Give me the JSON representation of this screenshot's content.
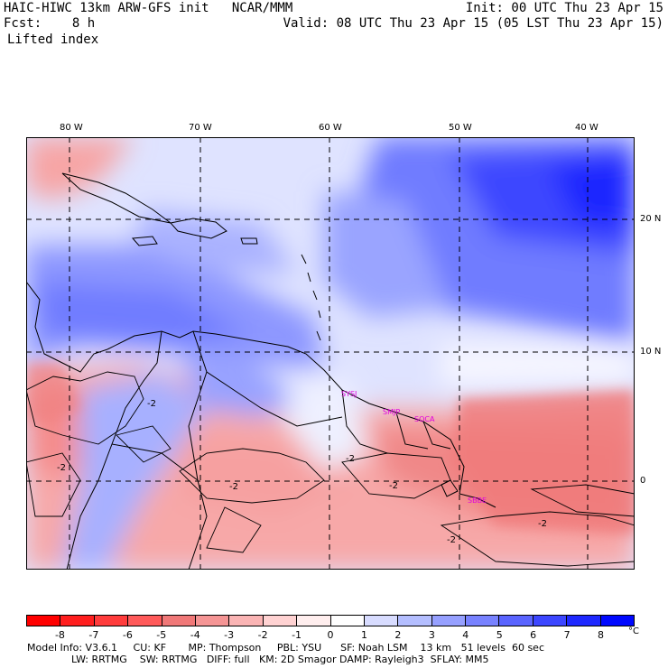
{
  "header": {
    "model_title": "HAIC-HIWC 13km ARW-GFS init   NCAR/MMM",
    "fcst_label": "Fcst:    8 h",
    "field_name": "Lifted index",
    "init_time": "Init: 00 UTC Thu 23 Apr 15",
    "valid_time": "Valid: 08 UTC Thu 23 Apr 15 (05 LST Thu 23 Apr 15)"
  },
  "longitude_labels": [
    "80 W",
    "70 W",
    "60 W",
    "50 W",
    "40 W"
  ],
  "latitude_labels": [
    "20 N",
    "10 N",
    "0"
  ],
  "city_labels": [
    "SYSJ",
    "SMJP",
    "SOCA",
    "SBBE"
  ],
  "contour_labels": [
    "-2",
    "-2",
    "-2",
    "-2",
    "-2",
    "-2",
    "-2"
  ],
  "colorbar": {
    "tick_labels": [
      "-8",
      "-7",
      "-6",
      "-5",
      "-4",
      "-3",
      "-2",
      "-1",
      "0",
      "1",
      "2",
      "3",
      "4",
      "5",
      "6",
      "7",
      "8"
    ],
    "unit": "°C",
    "colors": [
      "#ff0000",
      "#ff1e1e",
      "#ff3c3c",
      "#ff5a5a",
      "#f07878",
      "#f59595",
      "#fab4b4",
      "#ffd2d2",
      "#ffeeee",
      "#ffffff",
      "#d8dcff",
      "#b4beff",
      "#96a0ff",
      "#7882ff",
      "#5a64ff",
      "#3c46ff",
      "#1e28ff",
      "#0008ff"
    ]
  },
  "footer": {
    "line1": "Model Info: V3.6.1     CU: KF       MP: Thompson     PBL: YSU      SF: Noah LSM    13 km   51 levels  60 sec",
    "line2": "              LW: RRTMG    SW: RRTMG   DIFF: full   KM: 2D Smagor DAMP: Rayleigh3  SFLAY: MM5"
  }
}
